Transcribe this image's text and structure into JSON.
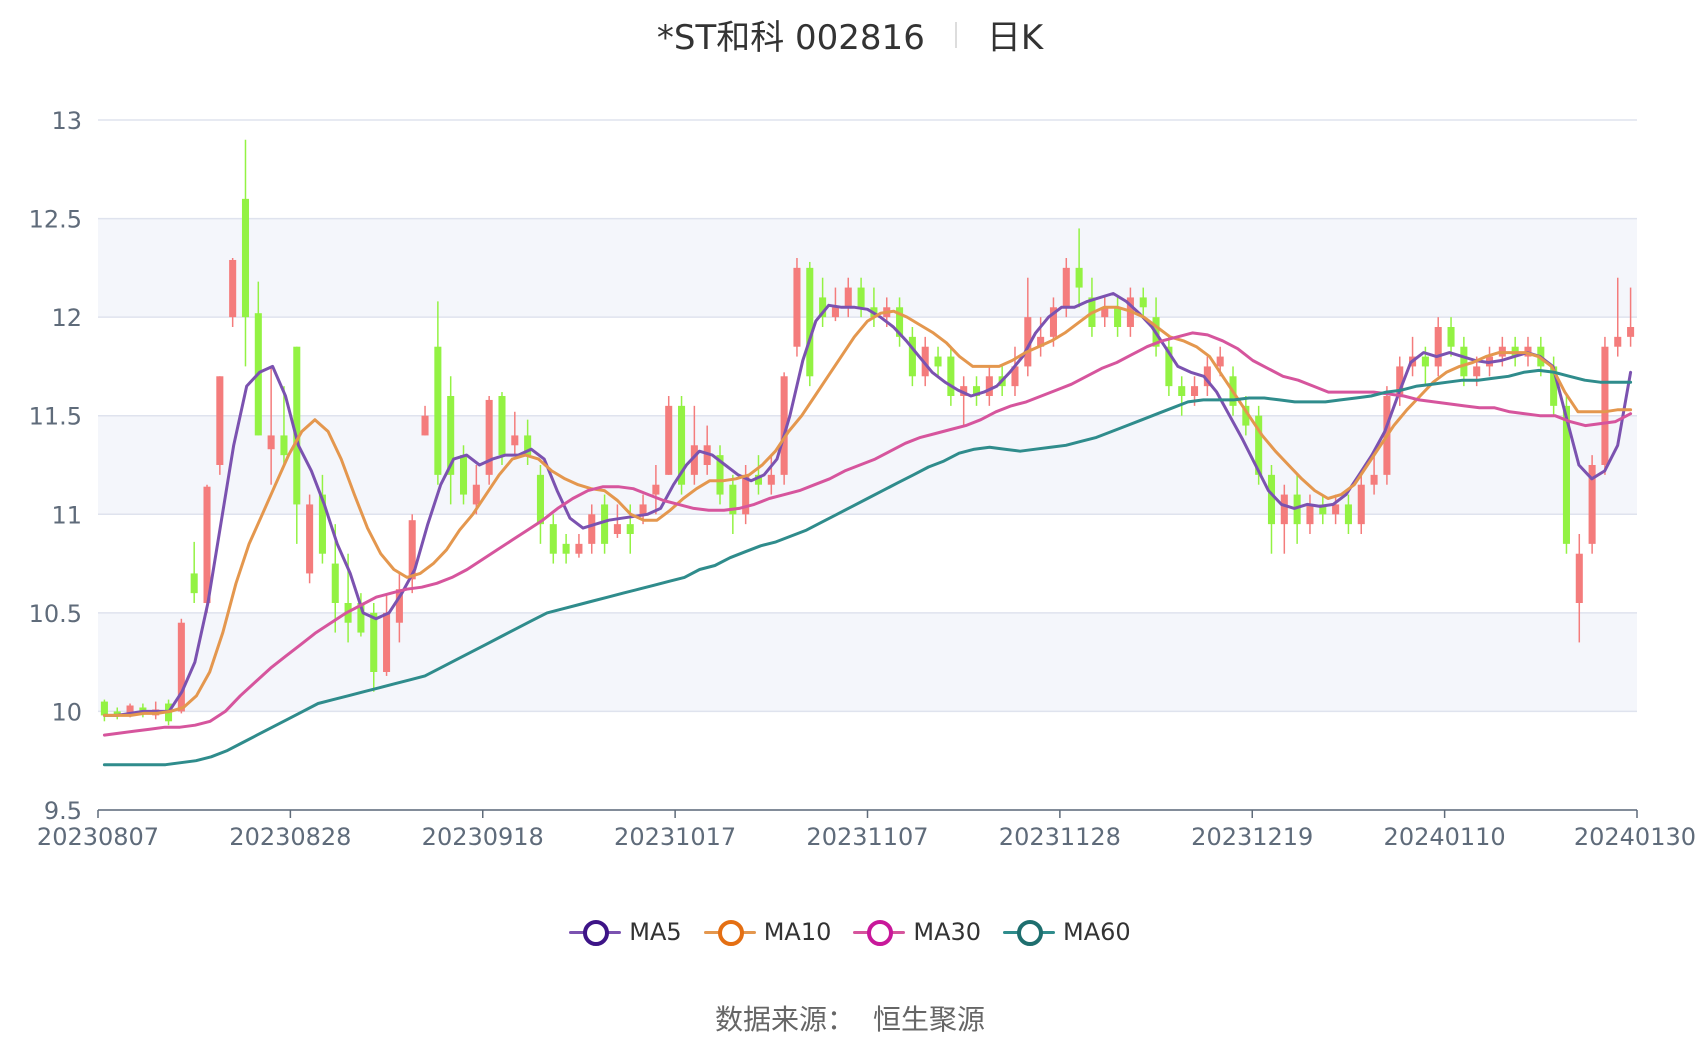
{
  "header": {
    "stock": "*ST和科 002816",
    "period": "日K"
  },
  "footer": {
    "source_label": "数据来源：",
    "source_value": "恒生聚源"
  },
  "colors": {
    "up": "#f47c7c",
    "down": "#93f243",
    "band": "#f4f6fb",
    "grid": "#dfe3ee",
    "axis": "#5f6b7a"
  },
  "chart_data": {
    "type": "candlestick",
    "ylim": [
      9.5,
      13
    ],
    "yticks": [
      "9.5",
      "10",
      "10.5",
      "11",
      "11.5",
      "12",
      "12.5",
      "13"
    ],
    "xticks": [
      {
        "idx": 0,
        "label": "20230807"
      },
      {
        "idx": 15,
        "label": "20230828"
      },
      {
        "idx": 30,
        "label": "20230918"
      },
      {
        "idx": 45,
        "label": "20231017"
      },
      {
        "idx": 60,
        "label": "20231107"
      },
      {
        "idx": 75,
        "label": "20231128"
      },
      {
        "idx": 90,
        "label": "20231219"
      },
      {
        "idx": 105,
        "label": "20240110"
      },
      {
        "idx": 119,
        "label": "20240130"
      }
    ],
    "candles": [
      [
        10.05,
        9.98,
        10.06,
        9.95
      ],
      [
        10.0,
        9.98,
        10.02,
        9.96
      ],
      [
        9.99,
        10.03,
        10.04,
        9.97
      ],
      [
        10.02,
        9.99,
        10.04,
        9.97
      ],
      [
        9.98,
        10.01,
        10.05,
        9.96
      ],
      [
        10.04,
        9.95,
        10.06,
        9.93
      ],
      [
        10.0,
        10.45,
        10.47,
        9.99
      ],
      [
        10.7,
        10.6,
        10.86,
        10.55
      ],
      [
        10.55,
        11.14,
        11.15,
        10.5
      ],
      [
        11.25,
        11.7,
        11.7,
        11.2
      ],
      [
        12.0,
        12.29,
        12.3,
        11.95
      ],
      [
        12.6,
        12.0,
        12.9,
        11.75
      ],
      [
        12.02,
        11.4,
        12.18,
        11.4
      ],
      [
        11.33,
        11.4,
        11.75,
        11.15
      ],
      [
        11.4,
        11.3,
        11.65,
        11.25
      ],
      [
        11.85,
        11.05,
        11.85,
        10.85
      ],
      [
        10.7,
        11.05,
        11.1,
        10.65
      ],
      [
        11.1,
        10.8,
        11.2,
        10.75
      ],
      [
        10.75,
        10.55,
        10.95,
        10.4
      ],
      [
        10.55,
        10.45,
        10.8,
        10.35
      ],
      [
        10.55,
        10.4,
        10.6,
        10.38
      ],
      [
        10.5,
        10.2,
        10.55,
        10.1
      ],
      [
        10.2,
        10.5,
        10.6,
        10.18
      ],
      [
        10.45,
        10.62,
        10.7,
        10.35
      ],
      [
        10.67,
        10.97,
        11.0,
        10.6
      ],
      [
        11.4,
        11.5,
        11.55,
        11.4
      ],
      [
        11.85,
        11.2,
        12.08,
        11.15
      ],
      [
        11.6,
        11.2,
        11.7,
        11.05
      ],
      [
        11.3,
        11.1,
        11.35,
        11.05
      ],
      [
        11.05,
        11.15,
        11.25,
        11.0
      ],
      [
        11.2,
        11.58,
        11.6,
        11.15
      ],
      [
        11.6,
        11.3,
        11.62,
        11.25
      ],
      [
        11.35,
        11.4,
        11.52,
        11.3
      ],
      [
        11.4,
        11.3,
        11.48,
        11.25
      ],
      [
        11.2,
        10.95,
        11.25,
        10.85
      ],
      [
        10.95,
        10.8,
        11.0,
        10.75
      ],
      [
        10.85,
        10.8,
        10.9,
        10.75
      ],
      [
        10.8,
        10.85,
        10.9,
        10.78
      ],
      [
        10.85,
        11.0,
        11.05,
        10.8
      ],
      [
        11.05,
        10.85,
        11.1,
        10.8
      ],
      [
        10.9,
        10.95,
        11.05,
        10.88
      ],
      [
        10.95,
        10.9,
        11.05,
        10.8
      ],
      [
        11.0,
        11.05,
        11.1,
        10.95
      ],
      [
        11.1,
        11.15,
        11.25,
        11.0
      ],
      [
        11.2,
        11.55,
        11.6,
        11.2
      ],
      [
        11.55,
        11.15,
        11.6,
        11.1
      ],
      [
        11.2,
        11.35,
        11.55,
        11.15
      ],
      [
        11.25,
        11.35,
        11.45,
        11.2
      ],
      [
        11.3,
        11.1,
        11.35,
        11.05
      ],
      [
        11.15,
        11.0,
        11.2,
        10.9
      ],
      [
        11.0,
        11.2,
        11.25,
        10.95
      ],
      [
        11.2,
        11.15,
        11.3,
        11.1
      ],
      [
        11.15,
        11.2,
        11.3,
        11.1
      ],
      [
        11.2,
        11.7,
        11.72,
        11.15
      ],
      [
        11.85,
        12.25,
        12.3,
        11.8
      ],
      [
        12.25,
        11.7,
        12.28,
        11.65
      ],
      [
        12.1,
        12.0,
        12.2,
        11.95
      ],
      [
        12.0,
        12.05,
        12.15,
        11.98
      ],
      [
        12.05,
        12.15,
        12.2,
        12.0
      ],
      [
        12.15,
        12.05,
        12.2,
        12.0
      ],
      [
        12.05,
        12.0,
        12.15,
        11.95
      ],
      [
        12.0,
        12.05,
        12.1,
        11.95
      ],
      [
        12.05,
        11.9,
        12.1,
        11.85
      ],
      [
        11.9,
        11.7,
        11.95,
        11.65
      ],
      [
        11.7,
        11.85,
        11.9,
        11.65
      ],
      [
        11.8,
        11.75,
        11.85,
        11.7
      ],
      [
        11.8,
        11.6,
        11.85,
        11.55
      ],
      [
        11.6,
        11.65,
        11.7,
        11.45
      ],
      [
        11.65,
        11.6,
        11.7,
        11.55
      ],
      [
        11.6,
        11.7,
        11.75,
        11.55
      ],
      [
        11.7,
        11.65,
        11.75,
        11.6
      ],
      [
        11.65,
        11.75,
        11.85,
        11.6
      ],
      [
        11.75,
        12.0,
        12.2,
        11.7
      ],
      [
        11.85,
        11.9,
        12.0,
        11.8
      ],
      [
        11.9,
        12.05,
        12.1,
        11.85
      ],
      [
        12.05,
        12.25,
        12.3,
        12.0
      ],
      [
        12.25,
        12.15,
        12.45,
        12.05
      ],
      [
        12.1,
        11.95,
        12.2,
        11.9
      ],
      [
        12.0,
        12.05,
        12.1,
        11.95
      ],
      [
        12.05,
        11.95,
        12.1,
        11.9
      ],
      [
        11.95,
        12.1,
        12.15,
        11.9
      ],
      [
        12.1,
        12.05,
        12.15,
        12.0
      ],
      [
        12.0,
        11.85,
        12.1,
        11.8
      ],
      [
        11.85,
        11.65,
        11.9,
        11.6
      ],
      [
        11.65,
        11.6,
        11.7,
        11.5
      ],
      [
        11.6,
        11.65,
        11.7,
        11.55
      ],
      [
        11.65,
        11.75,
        11.8,
        11.6
      ],
      [
        11.75,
        11.8,
        11.85,
        11.7
      ],
      [
        11.7,
        11.55,
        11.75,
        11.5
      ],
      [
        11.55,
        11.45,
        11.6,
        11.4
      ],
      [
        11.5,
        11.2,
        11.55,
        11.15
      ],
      [
        11.2,
        10.95,
        11.25,
        10.8
      ],
      [
        10.95,
        11.1,
        11.15,
        10.8
      ],
      [
        11.1,
        10.95,
        11.2,
        10.85
      ],
      [
        10.95,
        11.05,
        11.1,
        10.9
      ],
      [
        11.05,
        11.0,
        11.1,
        10.95
      ],
      [
        11.0,
        11.05,
        11.1,
        10.95
      ],
      [
        11.05,
        10.95,
        11.1,
        10.9
      ],
      [
        10.95,
        11.15,
        11.2,
        10.9
      ],
      [
        11.15,
        11.2,
        11.3,
        11.1
      ],
      [
        11.2,
        11.6,
        11.65,
        11.15
      ],
      [
        11.6,
        11.75,
        11.8,
        11.55
      ],
      [
        11.75,
        11.8,
        11.9,
        11.7
      ],
      [
        11.8,
        11.75,
        11.85,
        11.65
      ],
      [
        11.75,
        11.95,
        12.0,
        11.7
      ],
      [
        11.95,
        11.85,
        12.0,
        11.8
      ],
      [
        11.85,
        11.7,
        11.9,
        11.65
      ],
      [
        11.7,
        11.75,
        11.8,
        11.65
      ],
      [
        11.75,
        11.8,
        11.85,
        11.7
      ],
      [
        11.8,
        11.85,
        11.9,
        11.75
      ],
      [
        11.85,
        11.8,
        11.9,
        11.75
      ],
      [
        11.8,
        11.85,
        11.9,
        11.75
      ],
      [
        11.85,
        11.75,
        11.9,
        11.7
      ],
      [
        11.75,
        11.55,
        11.8,
        11.5
      ],
      [
        11.55,
        10.85,
        11.6,
        10.8
      ],
      [
        10.55,
        10.8,
        10.9,
        10.35
      ],
      [
        10.85,
        11.25,
        11.3,
        10.8
      ],
      [
        11.25,
        11.85,
        11.9,
        11.2
      ],
      [
        11.85,
        11.9,
        12.2,
        11.8
      ],
      [
        11.9,
        11.95,
        12.15,
        11.85
      ]
    ],
    "series": [
      {
        "name": "MA5",
        "color": "#7b52b0",
        "legend_color": "#3d1487",
        "values": [
          9.98,
          9.98,
          9.99,
          10.0,
          10.0,
          10.0,
          10.1,
          10.25,
          10.55,
          10.95,
          11.35,
          11.65,
          11.72,
          11.75,
          11.6,
          11.35,
          11.22,
          11.05,
          10.85,
          10.7,
          10.5,
          10.47,
          10.5,
          10.6,
          10.72,
          10.95,
          11.15,
          11.28,
          11.3,
          11.25,
          11.28,
          11.3,
          11.3,
          11.33,
          11.28,
          11.12,
          10.98,
          10.93,
          10.95,
          10.97,
          10.98,
          10.99,
          11.0,
          11.03,
          11.15,
          11.25,
          11.32,
          11.3,
          11.25,
          11.2,
          11.17,
          11.2,
          11.28,
          11.5,
          11.78,
          11.98,
          12.06,
          12.05,
          12.05,
          12.04,
          12.0,
          11.95,
          11.88,
          11.8,
          11.72,
          11.67,
          11.63,
          11.6,
          11.62,
          11.65,
          11.72,
          11.8,
          11.92,
          12.0,
          12.05,
          12.05,
          12.08,
          12.1,
          12.12,
          12.08,
          12.02,
          11.95,
          11.85,
          11.75,
          11.72,
          11.7,
          11.62,
          11.5,
          11.38,
          11.25,
          11.12,
          11.05,
          11.03,
          11.05,
          11.04,
          11.05,
          11.1,
          11.2,
          11.3,
          11.42,
          11.6,
          11.77,
          11.82,
          11.8,
          11.82,
          11.8,
          11.78,
          11.77,
          11.78,
          11.8,
          11.82,
          11.8,
          11.75,
          11.5,
          11.25,
          11.18,
          11.22,
          11.35,
          11.72
        ]
      },
      {
        "name": "MA10",
        "color": "#e4974e",
        "legend_color": "#e46f13",
        "values": [
          9.98,
          9.98,
          9.98,
          9.99,
          9.99,
          10.0,
          10.02,
          10.08,
          10.2,
          10.4,
          10.65,
          10.85,
          11.0,
          11.15,
          11.3,
          11.42,
          11.48,
          11.42,
          11.28,
          11.1,
          10.93,
          10.8,
          10.72,
          10.68,
          10.7,
          10.75,
          10.82,
          10.92,
          11.0,
          11.1,
          11.2,
          11.28,
          11.3,
          11.28,
          11.22,
          11.18,
          11.15,
          11.13,
          11.12,
          11.07,
          11.0,
          10.97,
          10.97,
          11.02,
          11.08,
          11.13,
          11.17,
          11.17,
          11.18,
          11.2,
          11.25,
          11.32,
          11.42,
          11.5,
          11.6,
          11.7,
          11.8,
          11.9,
          11.98,
          12.02,
          12.03,
          12.0,
          11.96,
          11.92,
          11.87,
          11.8,
          11.75,
          11.75,
          11.75,
          11.78,
          11.82,
          11.85,
          11.88,
          11.92,
          11.97,
          12.02,
          12.05,
          12.05,
          12.03,
          12.0,
          11.95,
          11.9,
          11.88,
          11.85,
          11.8,
          11.7,
          11.6,
          11.5,
          11.4,
          11.32,
          11.25,
          11.18,
          11.12,
          11.08,
          11.1,
          11.15,
          11.25,
          11.35,
          11.45,
          11.53,
          11.6,
          11.67,
          11.72,
          11.75,
          11.77,
          11.8,
          11.82,
          11.82,
          11.82,
          11.8,
          11.75,
          11.62,
          11.52,
          11.52,
          11.52,
          11.53,
          11.53
        ]
      },
      {
        "name": "MA30",
        "color": "#d6559d",
        "legend_color": "#c8189a",
        "values": [
          9.88,
          9.89,
          9.9,
          9.91,
          9.92,
          9.92,
          9.93,
          9.95,
          10.0,
          10.08,
          10.15,
          10.22,
          10.28,
          10.34,
          10.4,
          10.45,
          10.5,
          10.54,
          10.58,
          10.6,
          10.62,
          10.63,
          10.65,
          10.68,
          10.72,
          10.77,
          10.82,
          10.87,
          10.92,
          10.97,
          11.03,
          11.08,
          11.12,
          11.14,
          11.14,
          11.13,
          11.1,
          11.07,
          11.05,
          11.03,
          11.02,
          11.02,
          11.03,
          11.05,
          11.08,
          11.1,
          11.12,
          11.15,
          11.18,
          11.22,
          11.25,
          11.28,
          11.32,
          11.36,
          11.39,
          11.41,
          11.43,
          11.45,
          11.48,
          11.52,
          11.55,
          11.57,
          11.6,
          11.63,
          11.66,
          11.7,
          11.74,
          11.77,
          11.81,
          11.85,
          11.88,
          11.9,
          11.92,
          11.91,
          11.88,
          11.84,
          11.78,
          11.74,
          11.7,
          11.68,
          11.65,
          11.62,
          11.62,
          11.62,
          11.62,
          11.61,
          11.6,
          11.58,
          11.57,
          11.56,
          11.55,
          11.54,
          11.54,
          11.52,
          11.51,
          11.5,
          11.5,
          11.47,
          11.45,
          11.46,
          11.47,
          11.51
        ]
      },
      {
        "name": "MA60",
        "color": "#2f8c8c",
        "legend_color": "#1e6e6e",
        "values": [
          9.73,
          9.73,
          9.73,
          9.73,
          9.73,
          9.74,
          9.75,
          9.77,
          9.8,
          9.84,
          9.88,
          9.92,
          9.96,
          10.0,
          10.04,
          10.06,
          10.08,
          10.1,
          10.12,
          10.14,
          10.16,
          10.18,
          10.22,
          10.26,
          10.3,
          10.34,
          10.38,
          10.42,
          10.46,
          10.5,
          10.52,
          10.54,
          10.56,
          10.58,
          10.6,
          10.62,
          10.64,
          10.66,
          10.68,
          10.72,
          10.74,
          10.78,
          10.81,
          10.84,
          10.86,
          10.89,
          10.92,
          10.96,
          11.0,
          11.04,
          11.08,
          11.12,
          11.16,
          11.2,
          11.24,
          11.27,
          11.31,
          11.33,
          11.34,
          11.33,
          11.32,
          11.33,
          11.34,
          11.35,
          11.37,
          11.39,
          11.42,
          11.45,
          11.48,
          11.51,
          11.54,
          11.57,
          11.58,
          11.58,
          11.58,
          11.59,
          11.59,
          11.58,
          11.57,
          11.57,
          11.57,
          11.58,
          11.59,
          11.6,
          11.62,
          11.63,
          11.65,
          11.66,
          11.67,
          11.68,
          11.68,
          11.69,
          11.7,
          11.72,
          11.73,
          11.72,
          11.7,
          11.68,
          11.67,
          11.67,
          11.67
        ]
      }
    ]
  }
}
